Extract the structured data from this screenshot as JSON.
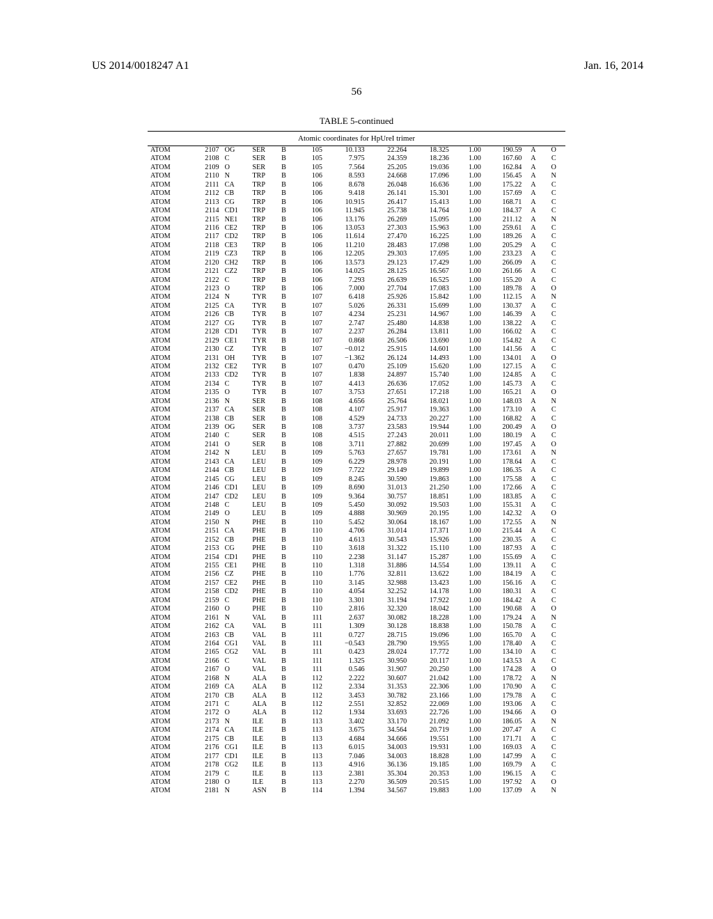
{
  "header": {
    "patent_number": "US 2014/0018247 A1",
    "date": "Jan. 16, 2014",
    "page_number": "56"
  },
  "table": {
    "title": "TABLE 5-continued",
    "caption": "Atomic coordinates for HpUreI trimer",
    "rows": [
      [
        "ATOM",
        "2107",
        "OG",
        "SER",
        "B",
        "105",
        "10.133",
        "22.264",
        "18.325",
        "1.00",
        "190.59",
        "A",
        "O"
      ],
      [
        "ATOM",
        "2108",
        "C",
        "SER",
        "B",
        "105",
        "7.975",
        "24.359",
        "18.236",
        "1.00",
        "167.60",
        "A",
        "C"
      ],
      [
        "ATOM",
        "2109",
        "O",
        "SER",
        "B",
        "105",
        "7.564",
        "25.205",
        "19.036",
        "1.00",
        "162.84",
        "A",
        "O"
      ],
      [
        "ATOM",
        "2110",
        "N",
        "TRP",
        "B",
        "106",
        "8.593",
        "24.668",
        "17.096",
        "1.00",
        "156.45",
        "A",
        "N"
      ],
      [
        "ATOM",
        "2111",
        "CA",
        "TRP",
        "B",
        "106",
        "8.678",
        "26.048",
        "16.636",
        "1.00",
        "175.22",
        "A",
        "C"
      ],
      [
        "ATOM",
        "2112",
        "CB",
        "TRP",
        "B",
        "106",
        "9.418",
        "26.141",
        "15.301",
        "1.00",
        "157.69",
        "A",
        "C"
      ],
      [
        "ATOM",
        "2113",
        "CG",
        "TRP",
        "B",
        "106",
        "10.915",
        "26.417",
        "15.413",
        "1.00",
        "168.71",
        "A",
        "C"
      ],
      [
        "ATOM",
        "2114",
        "CD1",
        "TRP",
        "B",
        "106",
        "11.945",
        "25.738",
        "14.764",
        "1.00",
        "184.37",
        "A",
        "C"
      ],
      [
        "ATOM",
        "2115",
        "NE1",
        "TRP",
        "B",
        "106",
        "13.176",
        "26.269",
        "15.095",
        "1.00",
        "211.12",
        "A",
        "N"
      ],
      [
        "ATOM",
        "2116",
        "CE2",
        "TRP",
        "B",
        "106",
        "13.053",
        "27.303",
        "15.963",
        "1.00",
        "259.61",
        "A",
        "C"
      ],
      [
        "ATOM",
        "2117",
        "CD2",
        "TRP",
        "B",
        "106",
        "11.614",
        "27.470",
        "16.225",
        "1.00",
        "189.26",
        "A",
        "C"
      ],
      [
        "ATOM",
        "2118",
        "CE3",
        "TRP",
        "B",
        "106",
        "11.210",
        "28.483",
        "17.098",
        "1.00",
        "205.29",
        "A",
        "C"
      ],
      [
        "ATOM",
        "2119",
        "CZ3",
        "TRP",
        "B",
        "106",
        "12.205",
        "29.303",
        "17.695",
        "1.00",
        "233.23",
        "A",
        "C"
      ],
      [
        "ATOM",
        "2120",
        "CH2",
        "TRP",
        "B",
        "106",
        "13.573",
        "29.123",
        "17.429",
        "1.00",
        "266.09",
        "A",
        "C"
      ],
      [
        "ATOM",
        "2121",
        "CZ2",
        "TRP",
        "B",
        "106",
        "14.025",
        "28.125",
        "16.567",
        "1.00",
        "261.66",
        "A",
        "C"
      ],
      [
        "ATOM",
        "2122",
        "C",
        "TRP",
        "B",
        "106",
        "7.293",
        "26.639",
        "16.525",
        "1.00",
        "155.20",
        "A",
        "C"
      ],
      [
        "ATOM",
        "2123",
        "O",
        "TRP",
        "B",
        "106",
        "7.000",
        "27.704",
        "17.083",
        "1.00",
        "189.78",
        "A",
        "O"
      ],
      [
        "ATOM",
        "2124",
        "N",
        "TYR",
        "B",
        "107",
        "6.418",
        "25.926",
        "15.842",
        "1.00",
        "112.15",
        "A",
        "N"
      ],
      [
        "ATOM",
        "2125",
        "CA",
        "TYR",
        "B",
        "107",
        "5.026",
        "26.331",
        "15.699",
        "1.00",
        "130.37",
        "A",
        "C"
      ],
      [
        "ATOM",
        "2126",
        "CB",
        "TYR",
        "B",
        "107",
        "4.234",
        "25.231",
        "14.967",
        "1.00",
        "146.39",
        "A",
        "C"
      ],
      [
        "ATOM",
        "2127",
        "CG",
        "TYR",
        "B",
        "107",
        "2.747",
        "25.480",
        "14.838",
        "1.00",
        "138.22",
        "A",
        "C"
      ],
      [
        "ATOM",
        "2128",
        "CD1",
        "TYR",
        "B",
        "107",
        "2.237",
        "26.284",
        "13.811",
        "1.00",
        "166.02",
        "A",
        "C"
      ],
      [
        "ATOM",
        "2129",
        "CE1",
        "TYR",
        "B",
        "107",
        "0.868",
        "26.506",
        "13.690",
        "1.00",
        "154.82",
        "A",
        "C"
      ],
      [
        "ATOM",
        "2130",
        "CZ",
        "TYR",
        "B",
        "107",
        "−0.012",
        "25.915",
        "14.601",
        "1.00",
        "141.56",
        "A",
        "C"
      ],
      [
        "ATOM",
        "2131",
        "OH",
        "TYR",
        "B",
        "107",
        "−1.362",
        "26.124",
        "14.493",
        "1.00",
        "134.01",
        "A",
        "O"
      ],
      [
        "ATOM",
        "2132",
        "CE2",
        "TYR",
        "B",
        "107",
        "0.470",
        "25.109",
        "15.620",
        "1.00",
        "127.15",
        "A",
        "C"
      ],
      [
        "ATOM",
        "2133",
        "CD2",
        "TYR",
        "B",
        "107",
        "1.838",
        "24.897",
        "15.740",
        "1.00",
        "124.85",
        "A",
        "C"
      ],
      [
        "ATOM",
        "2134",
        "C",
        "TYR",
        "B",
        "107",
        "4.413",
        "26.636",
        "17.052",
        "1.00",
        "145.73",
        "A",
        "C"
      ],
      [
        "ATOM",
        "2135",
        "O",
        "TYR",
        "B",
        "107",
        "3.753",
        "27.651",
        "17.218",
        "1.00",
        "165.21",
        "A",
        "O"
      ],
      [
        "ATOM",
        "2136",
        "N",
        "SER",
        "B",
        "108",
        "4.656",
        "25.764",
        "18.021",
        "1.00",
        "148.03",
        "A",
        "N"
      ],
      [
        "ATOM",
        "2137",
        "CA",
        "SER",
        "B",
        "108",
        "4.107",
        "25.917",
        "19.363",
        "1.00",
        "173.10",
        "A",
        "C"
      ],
      [
        "ATOM",
        "2138",
        "CB",
        "SER",
        "B",
        "108",
        "4.529",
        "24.733",
        "20.227",
        "1.00",
        "168.82",
        "A",
        "C"
      ],
      [
        "ATOM",
        "2139",
        "OG",
        "SER",
        "B",
        "108",
        "3.737",
        "23.583",
        "19.944",
        "1.00",
        "200.49",
        "A",
        "O"
      ],
      [
        "ATOM",
        "2140",
        "C",
        "SER",
        "B",
        "108",
        "4.515",
        "27.243",
        "20.011",
        "1.00",
        "180.19",
        "A",
        "C"
      ],
      [
        "ATOM",
        "2141",
        "O",
        "SER",
        "B",
        "108",
        "3.711",
        "27.882",
        "20.699",
        "1.00",
        "197.45",
        "A",
        "O"
      ],
      [
        "ATOM",
        "2142",
        "N",
        "LEU",
        "B",
        "109",
        "5.763",
        "27.657",
        "19.781",
        "1.00",
        "173.61",
        "A",
        "N"
      ],
      [
        "ATOM",
        "2143",
        "CA",
        "LEU",
        "B",
        "109",
        "6.229",
        "28.978",
        "20.191",
        "1.00",
        "178.64",
        "A",
        "C"
      ],
      [
        "ATOM",
        "2144",
        "CB",
        "LEU",
        "B",
        "109",
        "7.722",
        "29.149",
        "19.899",
        "1.00",
        "186.35",
        "A",
        "C"
      ],
      [
        "ATOM",
        "2145",
        "CG",
        "LEU",
        "B",
        "109",
        "8.245",
        "30.590",
        "19.863",
        "1.00",
        "175.58",
        "A",
        "C"
      ],
      [
        "ATOM",
        "2146",
        "CD1",
        "LEU",
        "B",
        "109",
        "8.690",
        "31.013",
        "21.250",
        "1.00",
        "172.66",
        "A",
        "C"
      ],
      [
        "ATOM",
        "2147",
        "CD2",
        "LEU",
        "B",
        "109",
        "9.364",
        "30.757",
        "18.851",
        "1.00",
        "183.85",
        "A",
        "C"
      ],
      [
        "ATOM",
        "2148",
        "C",
        "LEU",
        "B",
        "109",
        "5.450",
        "30.092",
        "19.503",
        "1.00",
        "155.31",
        "A",
        "C"
      ],
      [
        "ATOM",
        "2149",
        "O",
        "LEU",
        "B",
        "109",
        "4.888",
        "30.969",
        "20.195",
        "1.00",
        "142.32",
        "A",
        "O"
      ],
      [
        "ATOM",
        "2150",
        "N",
        "PHE",
        "B",
        "110",
        "5.452",
        "30.064",
        "18.167",
        "1.00",
        "172.55",
        "A",
        "N"
      ],
      [
        "ATOM",
        "2151",
        "CA",
        "PHE",
        "B",
        "110",
        "4.706",
        "31.014",
        "17.371",
        "1.00",
        "215.44",
        "A",
        "C"
      ],
      [
        "ATOM",
        "2152",
        "CB",
        "PHE",
        "B",
        "110",
        "4.613",
        "30.543",
        "15.926",
        "1.00",
        "230.35",
        "A",
        "C"
      ],
      [
        "ATOM",
        "2153",
        "CG",
        "PHE",
        "B",
        "110",
        "3.618",
        "31.322",
        "15.110",
        "1.00",
        "187.93",
        "A",
        "C"
      ],
      [
        "ATOM",
        "2154",
        "CD1",
        "PHE",
        "B",
        "110",
        "2.238",
        "31.147",
        "15.287",
        "1.00",
        "155.69",
        "A",
        "C"
      ],
      [
        "ATOM",
        "2155",
        "CE1",
        "PHE",
        "B",
        "110",
        "1.318",
        "31.886",
        "14.554",
        "1.00",
        "139.11",
        "A",
        "C"
      ],
      [
        "ATOM",
        "2156",
        "CZ",
        "PHE",
        "B",
        "110",
        "1.776",
        "32.811",
        "13.622",
        "1.00",
        "184.19",
        "A",
        "C"
      ],
      [
        "ATOM",
        "2157",
        "CE2",
        "PHE",
        "B",
        "110",
        "3.145",
        "32.988",
        "13.423",
        "1.00",
        "156.16",
        "A",
        "C"
      ],
      [
        "ATOM",
        "2158",
        "CD2",
        "PHE",
        "B",
        "110",
        "4.054",
        "32.252",
        "14.178",
        "1.00",
        "180.31",
        "A",
        "C"
      ],
      [
        "ATOM",
        "2159",
        "C",
        "PHE",
        "B",
        "110",
        "3.301",
        "31.194",
        "17.922",
        "1.00",
        "184.42",
        "A",
        "C"
      ],
      [
        "ATOM",
        "2160",
        "O",
        "PHE",
        "B",
        "110",
        "2.816",
        "32.320",
        "18.042",
        "1.00",
        "190.68",
        "A",
        "O"
      ],
      [
        "ATOM",
        "2161",
        "N",
        "VAL",
        "B",
        "111",
        "2.637",
        "30.082",
        "18.228",
        "1.00",
        "179.24",
        "A",
        "N"
      ],
      [
        "ATOM",
        "2162",
        "CA",
        "VAL",
        "B",
        "111",
        "1.309",
        "30.128",
        "18.838",
        "1.00",
        "150.78",
        "A",
        "C"
      ],
      [
        "ATOM",
        "2163",
        "CB",
        "VAL",
        "B",
        "111",
        "0.727",
        "28.715",
        "19.096",
        "1.00",
        "165.70",
        "A",
        "C"
      ],
      [
        "ATOM",
        "2164",
        "CG1",
        "VAL",
        "B",
        "111",
        "−0.543",
        "28.790",
        "19.955",
        "1.00",
        "178.40",
        "A",
        "C"
      ],
      [
        "ATOM",
        "2165",
        "CG2",
        "VAL",
        "B",
        "111",
        "0.423",
        "28.024",
        "17.772",
        "1.00",
        "134.10",
        "A",
        "C"
      ],
      [
        "ATOM",
        "2166",
        "C",
        "VAL",
        "B",
        "111",
        "1.325",
        "30.950",
        "20.117",
        "1.00",
        "143.53",
        "A",
        "C"
      ],
      [
        "ATOM",
        "2167",
        "O",
        "VAL",
        "B",
        "111",
        "0.546",
        "31.907",
        "20.250",
        "1.00",
        "174.28",
        "A",
        "O"
      ],
      [
        "ATOM",
        "2168",
        "N",
        "ALA",
        "B",
        "112",
        "2.222",
        "30.607",
        "21.042",
        "1.00",
        "178.72",
        "A",
        "N"
      ],
      [
        "ATOM",
        "2169",
        "CA",
        "ALA",
        "B",
        "112",
        "2.334",
        "31.353",
        "22.306",
        "1.00",
        "170.90",
        "A",
        "C"
      ],
      [
        "ATOM",
        "2170",
        "CB",
        "ALA",
        "B",
        "112",
        "3.453",
        "30.782",
        "23.166",
        "1.00",
        "179.78",
        "A",
        "C"
      ],
      [
        "ATOM",
        "2171",
        "C",
        "ALA",
        "B",
        "112",
        "2.551",
        "32.852",
        "22.069",
        "1.00",
        "193.06",
        "A",
        "C"
      ],
      [
        "ATOM",
        "2172",
        "O",
        "ALA",
        "B",
        "112",
        "1.934",
        "33.693",
        "22.726",
        "1.00",
        "194.66",
        "A",
        "O"
      ],
      [
        "ATOM",
        "2173",
        "N",
        "ILE",
        "B",
        "113",
        "3.402",
        "33.170",
        "21.092",
        "1.00",
        "186.05",
        "A",
        "N"
      ],
      [
        "ATOM",
        "2174",
        "CA",
        "ILE",
        "B",
        "113",
        "3.675",
        "34.564",
        "20.719",
        "1.00",
        "207.47",
        "A",
        "C"
      ],
      [
        "ATOM",
        "2175",
        "CB",
        "ILE",
        "B",
        "113",
        "4.684",
        "34.666",
        "19.551",
        "1.00",
        "171.71",
        "A",
        "C"
      ],
      [
        "ATOM",
        "2176",
        "CG1",
        "ILE",
        "B",
        "113",
        "6.015",
        "34.003",
        "19.931",
        "1.00",
        "169.03",
        "A",
        "C"
      ],
      [
        "ATOM",
        "2177",
        "CD1",
        "ILE",
        "B",
        "113",
        "7.046",
        "34.003",
        "18.828",
        "1.00",
        "147.99",
        "A",
        "C"
      ],
      [
        "ATOM",
        "2178",
        "CG2",
        "ILE",
        "B",
        "113",
        "4.916",
        "36.136",
        "19.185",
        "1.00",
        "169.79",
        "A",
        "C"
      ],
      [
        "ATOM",
        "2179",
        "C",
        "ILE",
        "B",
        "113",
        "2.381",
        "35.304",
        "20.353",
        "1.00",
        "196.15",
        "A",
        "C"
      ],
      [
        "ATOM",
        "2180",
        "O",
        "ILE",
        "B",
        "113",
        "2.270",
        "36.509",
        "20.515",
        "1.00",
        "197.92",
        "A",
        "O"
      ],
      [
        "ATOM",
        "2181",
        "N",
        "ASN",
        "B",
        "114",
        "1.394",
        "34.567",
        "19.883",
        "1.00",
        "137.09",
        "A",
        "N"
      ]
    ]
  }
}
